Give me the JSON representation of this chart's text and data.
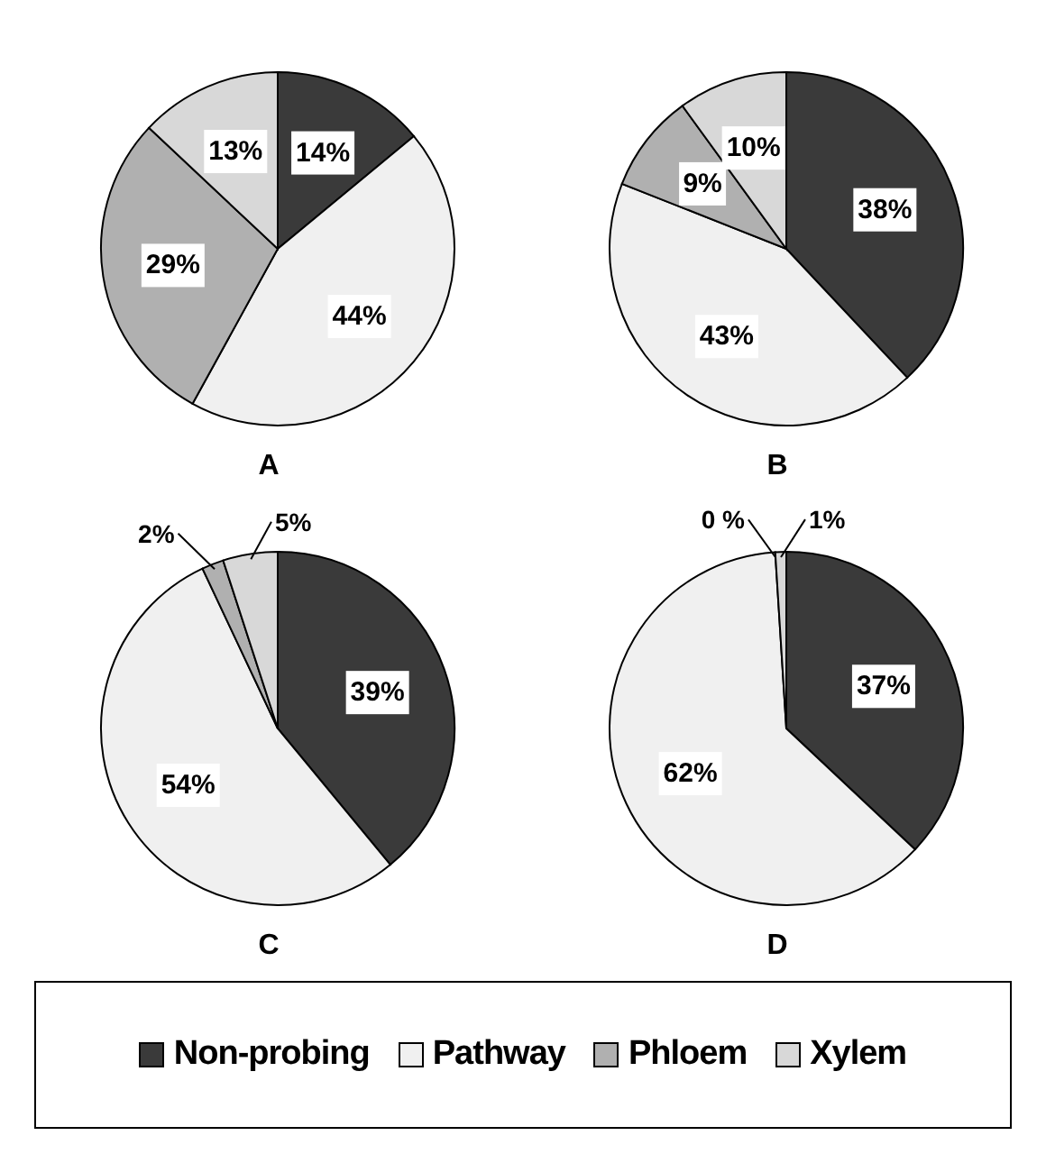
{
  "chart_data": [
    {
      "type": "pie",
      "title": "A",
      "categories": [
        "Non-probing",
        "Pathway",
        "Phloem",
        "Xylem"
      ],
      "values": [
        14,
        44,
        29,
        13
      ],
      "value_labels": [
        "14%",
        "44%",
        "29%",
        "13%"
      ],
      "colors": [
        "#3a3a3a",
        "#f0f0f0",
        "#b0b0b0",
        "#d8d8d8"
      ],
      "legend": "bottom"
    },
    {
      "type": "pie",
      "title": "B",
      "categories": [
        null,
        null,
        null,
        null
      ],
      "values": [
        38,
        43,
        9,
        10
      ],
      "value_labels": [
        "38%",
        "43%",
        "9%",
        "10%"
      ],
      "colors": [
        "#3a3a3a",
        "#f0f0f0",
        "#b0b0b0",
        "#d8d8d8"
      ]
    },
    {
      "type": "pie",
      "title": "C",
      "categories": [
        null,
        null,
        null,
        null
      ],
      "values": [
        39,
        54,
        2,
        5
      ],
      "value_labels": [
        "39%",
        "54%",
        "2%",
        "5%"
      ],
      "colors": [
        "#3a3a3a",
        "#f0f0f0",
        "#b0b0b0",
        "#d8d8d8"
      ]
    },
    {
      "type": "pie",
      "title": "D",
      "categories": [
        null,
        null,
        null,
        null
      ],
      "values": [
        37,
        62,
        0,
        1
      ],
      "value_labels": [
        "37%",
        "62%",
        "0 %",
        "1%"
      ],
      "colors": [
        "#3a3a3a",
        "#f0f0f0",
        "#b0b0b0",
        "#d8d8d8"
      ]
    }
  ]
}
